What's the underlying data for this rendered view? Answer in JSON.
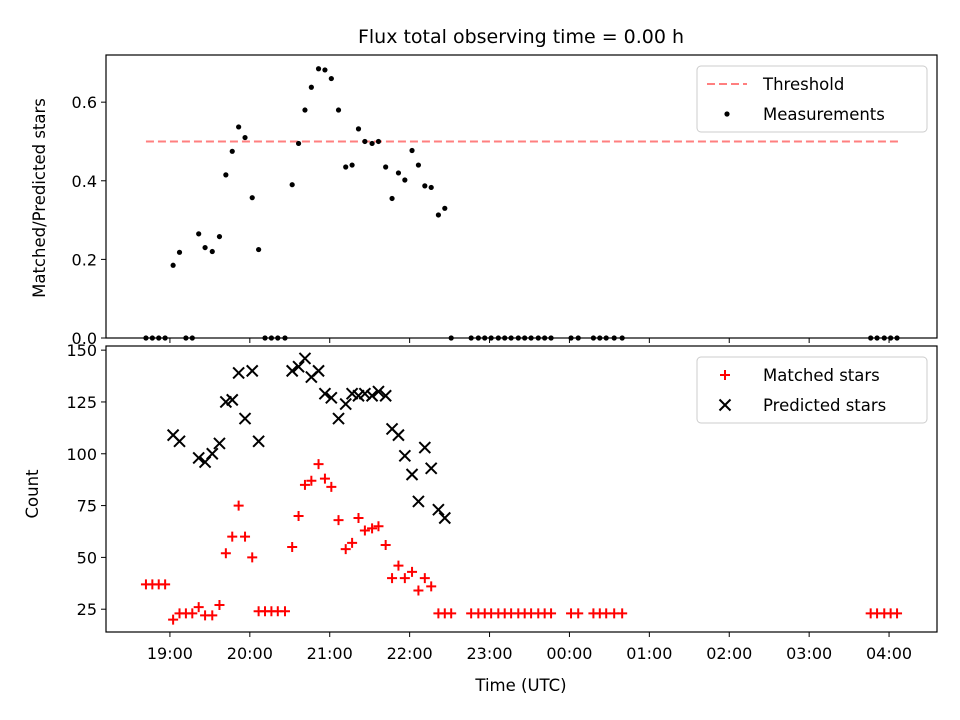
{
  "chart_data": [
    {
      "type": "scatter",
      "title": "Flux total observing time = 0.00 h",
      "xlabel": "",
      "ylabel": "Matched/Predicted stars",
      "ylim": [
        0,
        0.72
      ],
      "xlim": [
        18.2,
        28.6
      ],
      "yticks": [
        0.0,
        0.2,
        0.4,
        0.6
      ],
      "ytick_labels": [
        "0.0",
        "0.2",
        "0.4",
        "0.6"
      ],
      "legend_position": "top-right",
      "series": [
        {
          "name": "Threshold",
          "kind": "line",
          "style": "dashed",
          "color": "#ff7f7f",
          "x": [
            18.7,
            28.15
          ],
          "y": [
            0.5,
            0.5
          ]
        },
        {
          "name": "Measurements",
          "kind": "points",
          "color": "#000000",
          "x": [
            18.7,
            18.78,
            18.86,
            18.94,
            19.04,
            19.12,
            19.2,
            19.28,
            19.36,
            19.44,
            19.53,
            19.62,
            19.7,
            19.78,
            19.86,
            19.94,
            20.03,
            20.11,
            20.19,
            20.27,
            20.35,
            20.44,
            20.53,
            20.61,
            20.69,
            20.77,
            20.86,
            20.94,
            21.02,
            21.11,
            21.2,
            21.28,
            21.36,
            21.44,
            21.53,
            21.61,
            21.7,
            21.78,
            21.86,
            21.94,
            22.03,
            22.11,
            22.19,
            22.27,
            22.36,
            22.44,
            22.52,
            22.77,
            22.86,
            22.94,
            23.02,
            23.11,
            23.19,
            23.27,
            23.36,
            23.44,
            23.52,
            23.61,
            23.69,
            23.77,
            24.02,
            24.11,
            24.3,
            24.38,
            24.46,
            24.56,
            24.66,
            27.77,
            27.85,
            27.94,
            28.02,
            28.1
          ],
          "y": [
            0,
            0,
            0,
            0,
            0.185,
            0.218,
            0,
            0,
            0.265,
            0.23,
            0.22,
            0.258,
            0.415,
            0.475,
            0.537,
            0.51,
            0.357,
            0.225,
            0,
            0,
            0,
            0,
            0.39,
            0.495,
            0.58,
            0.638,
            0.685,
            0.682,
            0.66,
            0.58,
            0.435,
            0.44,
            0.532,
            0.5,
            0.495,
            0.5,
            0.435,
            0.355,
            0.42,
            0.402,
            0.477,
            0.44,
            0.387,
            0.383,
            0.313,
            0.33,
            0,
            0,
            0,
            0,
            0,
            0,
            0,
            0,
            0,
            0,
            0,
            0,
            0,
            0,
            0,
            0,
            0,
            0,
            0,
            0,
            0,
            0,
            0,
            0,
            0,
            0
          ]
        }
      ]
    },
    {
      "type": "scatter",
      "title": "",
      "xlabel": "Time (UTC)",
      "ylabel": "Count",
      "ylim": [
        14,
        152
      ],
      "xlim": [
        18.2,
        28.6
      ],
      "yticks": [
        25,
        50,
        75,
        100,
        125,
        150
      ],
      "ytick_labels": [
        "25",
        "50",
        "75",
        "100",
        "125",
        "150"
      ],
      "xticks": [
        19,
        20,
        21,
        22,
        23,
        24,
        25,
        26,
        27,
        28
      ],
      "xtick_labels": [
        "19:00",
        "20:00",
        "21:00",
        "22:00",
        "23:00",
        "00:00",
        "01:00",
        "02:00",
        "03:00",
        "04:00"
      ],
      "legend_position": "top-right",
      "series": [
        {
          "name": "Matched stars",
          "kind": "plus",
          "color": "#ff0000",
          "x": [
            18.7,
            18.78,
            18.86,
            18.94,
            19.04,
            19.12,
            19.2,
            19.28,
            19.36,
            19.44,
            19.53,
            19.62,
            19.7,
            19.78,
            19.86,
            19.94,
            20.03,
            20.11,
            20.19,
            20.27,
            20.35,
            20.44,
            20.53,
            20.61,
            20.69,
            20.77,
            20.86,
            20.94,
            21.02,
            21.11,
            21.2,
            21.28,
            21.36,
            21.44,
            21.53,
            21.61,
            21.7,
            21.78,
            21.86,
            21.94,
            22.03,
            22.11,
            22.19,
            22.27,
            22.36,
            22.44,
            22.52,
            22.77,
            22.86,
            22.94,
            23.02,
            23.11,
            23.19,
            23.27,
            23.36,
            23.44,
            23.52,
            23.61,
            23.69,
            23.77,
            24.02,
            24.11,
            24.3,
            24.38,
            24.46,
            24.56,
            24.66,
            27.77,
            27.85,
            27.94,
            28.02,
            28.1
          ],
          "y": [
            37,
            37,
            37,
            37,
            20,
            23,
            23,
            23,
            26,
            22,
            22,
            27,
            52,
            60,
            75,
            60,
            50,
            24,
            24,
            24,
            24,
            24,
            55,
            70,
            85,
            87,
            95,
            88,
            84,
            68,
            54,
            57,
            69,
            63,
            64,
            65,
            56,
            40,
            46,
            40,
            43,
            34,
            40,
            36,
            23,
            23,
            23,
            23,
            23,
            23,
            23,
            23,
            23,
            23,
            23,
            23,
            23,
            23,
            23,
            23,
            23,
            23,
            23,
            23,
            23,
            23,
            23,
            23,
            23,
            23,
            23,
            23
          ]
        },
        {
          "name": "Predicted stars",
          "kind": "x",
          "color": "#000000",
          "x": [
            19.04,
            19.12,
            19.36,
            19.44,
            19.53,
            19.62,
            19.7,
            19.78,
            19.86,
            19.94,
            20.03,
            20.11,
            20.53,
            20.61,
            20.69,
            20.77,
            20.86,
            20.94,
            21.02,
            21.11,
            21.2,
            21.28,
            21.36,
            21.44,
            21.53,
            21.61,
            21.7,
            21.78,
            21.86,
            21.94,
            22.03,
            22.11,
            22.19,
            22.27,
            22.36,
            22.44
          ],
          "y": [
            109,
            106,
            98,
            96,
            100,
            105,
            125,
            126,
            139,
            117,
            140,
            106,
            140,
            142,
            146,
            137,
            140,
            129,
            127,
            117,
            124,
            129,
            128,
            129,
            128,
            130,
            128,
            112,
            109,
            99,
            90,
            77,
            103,
            93,
            73,
            69
          ]
        }
      ]
    }
  ]
}
